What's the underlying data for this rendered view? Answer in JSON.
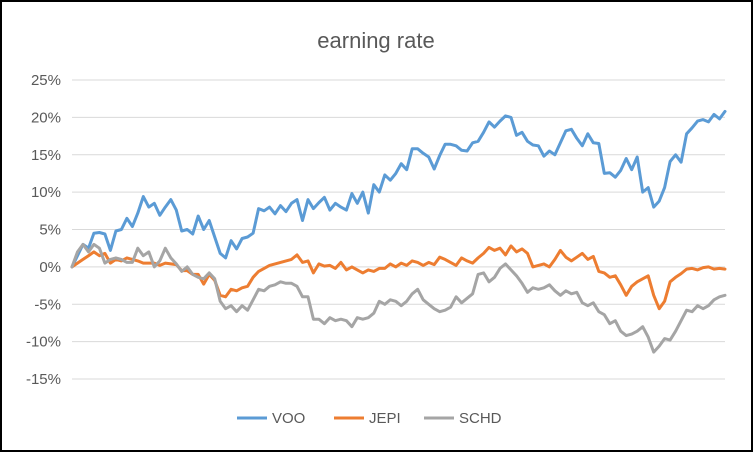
{
  "chart_data": {
    "type": "line",
    "title": "earning rate",
    "xlabel": "",
    "ylabel": "",
    "ylim": [
      -15,
      25
    ],
    "yticks": [
      25,
      20,
      15,
      10,
      5,
      0,
      -5,
      -10,
      -15
    ],
    "ytick_labels": [
      "25%",
      "20%",
      "15%",
      "10%",
      "5%",
      "0%",
      "-5%",
      "-10%",
      "-15%"
    ],
    "grid": true,
    "legend": "bottom",
    "series": [
      {
        "name": "VOO",
        "color": "#5b9bd5",
        "values": [
          0.0,
          1.5,
          3.0,
          2.5,
          4.5,
          4.6,
          4.4,
          2.2,
          4.8,
          5.0,
          6.5,
          5.4,
          7.2,
          9.4,
          8.0,
          8.5,
          6.9,
          8.0,
          9.0,
          7.6,
          4.8,
          5.0,
          4.4,
          6.8,
          5.0,
          6.2,
          4.0,
          1.8,
          1.2,
          3.5,
          2.4,
          3.8,
          4.0,
          4.5,
          7.8,
          7.5,
          8.0,
          7.1,
          8.2,
          7.4,
          8.5,
          9.0,
          6.2,
          9.0,
          7.8,
          8.6,
          9.3,
          7.6,
          8.5,
          8.0,
          7.6,
          9.8,
          8.5,
          10.0,
          7.2,
          11.0,
          10.0,
          12.3,
          11.6,
          12.5,
          13.8,
          13.0,
          15.8,
          15.8,
          15.2,
          14.7,
          13.1,
          14.9,
          16.4,
          16.4,
          16.2,
          15.6,
          15.5,
          16.6,
          16.8,
          18.0,
          19.4,
          18.7,
          19.5,
          20.2,
          20.0,
          17.6,
          18.0,
          16.8,
          16.3,
          16.2,
          14.8,
          15.5,
          15.0,
          16.6,
          18.2,
          18.4,
          17.2,
          16.2,
          17.8,
          16.6,
          16.5,
          12.5,
          12.6,
          12.0,
          12.9,
          14.5,
          13.0,
          14.7,
          10.0,
          10.6,
          8.0,
          8.8,
          10.6,
          14.1,
          15.0,
          14.0,
          17.8,
          18.6,
          19.5,
          19.7,
          19.4,
          20.4,
          19.8,
          20.8
        ]
      },
      {
        "name": "JEPI",
        "color": "#ed7d31",
        "values": [
          0.0,
          0.5,
          1.0,
          1.5,
          2.0,
          1.5,
          1.8,
          0.5,
          1.0,
          0.8,
          1.2,
          1.0,
          0.8,
          0.5,
          0.5,
          0.5,
          0.2,
          0.5,
          0.4,
          0.3,
          -0.5,
          -0.5,
          -1.0,
          -1.0,
          -2.3,
          -1.0,
          -1.8,
          -3.8,
          -4.0,
          -3.0,
          -3.2,
          -2.8,
          -2.6,
          -1.4,
          -0.6,
          -0.2,
          0.2,
          0.4,
          0.6,
          0.8,
          1.0,
          1.6,
          0.6,
          0.8,
          -0.8,
          0.4,
          0.1,
          0.2,
          -0.2,
          0.6,
          -0.4,
          0.0,
          -0.4,
          -0.8,
          -0.4,
          -0.6,
          -0.2,
          -0.2,
          0.4,
          0.0,
          0.5,
          0.2,
          0.8,
          0.6,
          0.2,
          0.6,
          0.3,
          1.3,
          1.0,
          0.6,
          0.2,
          1.2,
          0.8,
          0.5,
          1.2,
          1.8,
          2.6,
          2.2,
          2.5,
          1.6,
          2.8,
          2.0,
          2.4,
          1.8,
          0.0,
          0.2,
          0.4,
          0.0,
          1.0,
          2.2,
          1.3,
          0.8,
          1.3,
          1.8,
          1.0,
          1.4,
          -0.6,
          -0.8,
          -1.4,
          -1.2,
          -2.4,
          -3.8,
          -2.6,
          -2.0,
          -1.6,
          -1.2,
          -3.8,
          -5.6,
          -4.6,
          -2.0,
          -1.4,
          -0.9,
          -0.3,
          -0.2,
          -0.4,
          -0.1,
          0.0,
          -0.3,
          -0.2,
          -0.3
        ]
      },
      {
        "name": "SCHD",
        "color": "#a5a5a5",
        "values": [
          0.0,
          2.0,
          3.0,
          2.0,
          3.0,
          2.5,
          0.5,
          1.0,
          1.2,
          1.0,
          0.6,
          0.6,
          2.5,
          1.5,
          2.0,
          0.0,
          0.8,
          2.5,
          1.2,
          0.4,
          -0.6,
          0.0,
          -1.0,
          -1.4,
          -1.6,
          -0.8,
          -1.6,
          -4.6,
          -5.6,
          -5.2,
          -6.0,
          -5.2,
          -5.8,
          -4.4,
          -3.0,
          -3.2,
          -2.6,
          -2.4,
          -2.0,
          -2.2,
          -2.2,
          -2.6,
          -4.0,
          -4.0,
          -7.0,
          -7.0,
          -7.6,
          -6.8,
          -7.2,
          -7.0,
          -7.2,
          -8.0,
          -6.8,
          -7.0,
          -6.8,
          -6.2,
          -4.6,
          -5.0,
          -4.4,
          -4.6,
          -5.2,
          -4.6,
          -3.6,
          -3.0,
          -4.4,
          -5.0,
          -5.6,
          -6.0,
          -5.8,
          -5.4,
          -4.0,
          -4.8,
          -4.2,
          -3.6,
          -1.0,
          -0.8,
          -2.0,
          -1.4,
          -0.2,
          0.4,
          -0.4,
          -1.2,
          -2.2,
          -3.4,
          -2.8,
          -3.0,
          -2.8,
          -2.4,
          -3.2,
          -3.8,
          -3.2,
          -3.6,
          -3.4,
          -4.8,
          -5.2,
          -4.8,
          -6.0,
          -6.4,
          -7.6,
          -7.2,
          -8.6,
          -9.2,
          -9.0,
          -8.6,
          -8.0,
          -9.4,
          -11.4,
          -10.6,
          -9.6,
          -9.8,
          -8.6,
          -7.2,
          -5.8,
          -6.0,
          -5.2,
          -5.6,
          -5.2,
          -4.4,
          -4.0,
          -3.8
        ]
      }
    ]
  }
}
